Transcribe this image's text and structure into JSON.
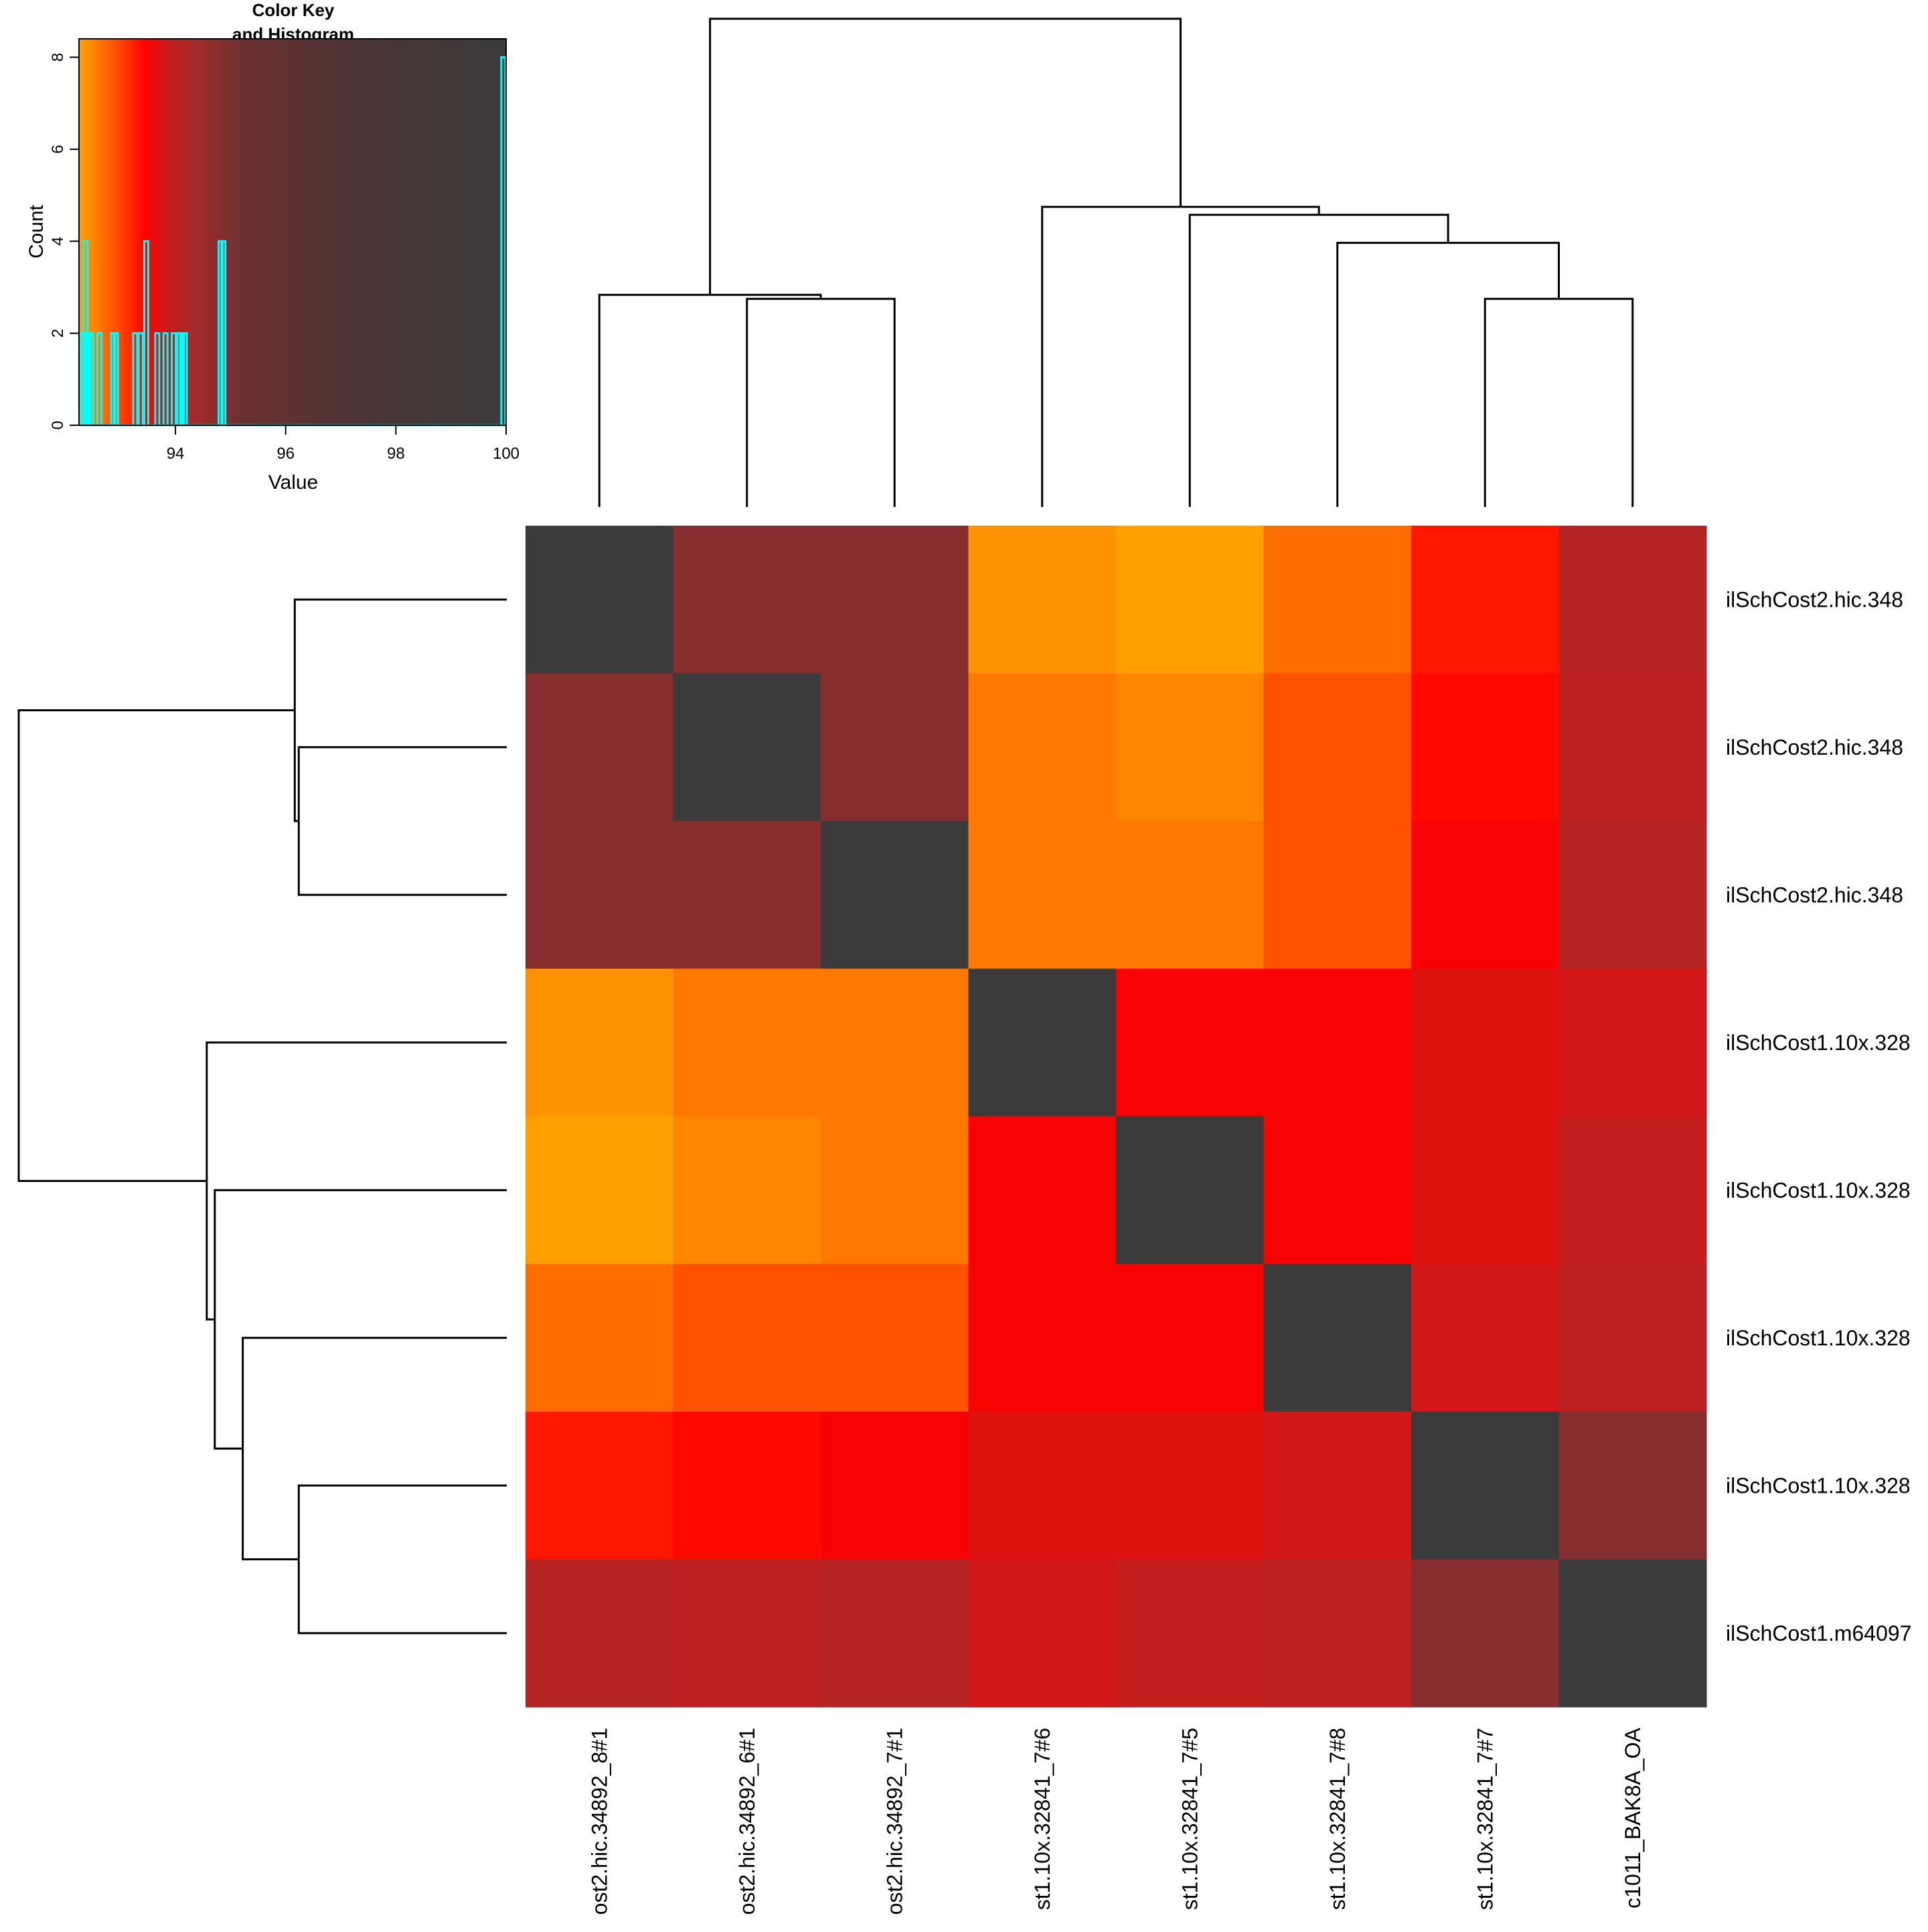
{
  "chart_data": {
    "type": "heatmap",
    "title": "",
    "xlabel": "",
    "ylabel": "",
    "rows": [
      "ilSchCost2.hic.348",
      "ilSchCost2.hic.348",
      "ilSchCost2.hic.348",
      "ilSchCost1.10x.328",
      "ilSchCost1.10x.328",
      "ilSchCost1.10x.328",
      "ilSchCost1.10x.328",
      "ilSchCost1.m64097"
    ],
    "columns": [
      "ost2.hic.34892_8#1",
      "ost2.hic.34892_6#1",
      "ost2.hic.34892_7#1",
      "st1.10x.32841_7#6",
      "st1.10x.32841_7#5",
      "st1.10x.32841_7#8",
      "st1.10x.32841_7#7",
      "c1011_BAK8A_OA"
    ],
    "values": [
      [
        100,
        94.8,
        94.8,
        92.4,
        92.3,
        92.7,
        93.3,
        94.1
      ],
      [
        94.8,
        100,
        94.8,
        92.6,
        92.5,
        92.9,
        93.4,
        94.0
      ],
      [
        94.8,
        94.8,
        100,
        92.6,
        92.6,
        92.9,
        93.5,
        94.1
      ],
      [
        92.4,
        92.6,
        92.6,
        100,
        93.5,
        93.5,
        93.7,
        93.8
      ],
      [
        92.3,
        92.5,
        92.6,
        93.5,
        100,
        93.5,
        93.7,
        93.9
      ],
      [
        92.7,
        92.9,
        92.9,
        93.5,
        93.5,
        100,
        93.8,
        94.0
      ],
      [
        93.3,
        93.4,
        93.5,
        93.7,
        93.7,
        93.8,
        100,
        94.8
      ],
      [
        94.1,
        94.0,
        94.1,
        93.8,
        93.9,
        94.0,
        94.8,
        100
      ]
    ],
    "color_scale": {
      "stops": [
        {
          "value": 92.25,
          "color": "#ffa500"
        },
        {
          "value": 92.55,
          "color": "#ff8000"
        },
        {
          "value": 93.0,
          "color": "#ff4500"
        },
        {
          "value": 93.45,
          "color": "#ff0000"
        },
        {
          "value": 93.9,
          "color": "#c41e1e"
        },
        {
          "value": 94.35,
          "color": "#a52a2a"
        },
        {
          "value": 95.2,
          "color": "#6b3030"
        },
        {
          "value": 97.5,
          "color": "#4b3535"
        },
        {
          "value": 100,
          "color": "#3b3b3b"
        }
      ]
    },
    "column_dendrogram": {
      "leaf_order": [
        0,
        1,
        2,
        3,
        4,
        5,
        6,
        7
      ],
      "merges": [
        {
          "left": "1",
          "right": "2",
          "height": 5.2
        },
        {
          "left": "6",
          "right": "7",
          "height": 5.2
        },
        {
          "left": "0",
          "right": "m1",
          "height": 5.3
        },
        {
          "left": "5",
          "right": "m2",
          "height": 6.6
        },
        {
          "left": "4",
          "right": "m4",
          "height": 7.3
        },
        {
          "left": "3",
          "right": "m5",
          "height": 7.5
        },
        {
          "left": "m3",
          "right": "m6",
          "height": 12.2
        }
      ],
      "max_height": 12.2
    },
    "row_dendrogram": {
      "leaf_order": [
        0,
        1,
        2,
        3,
        4,
        5,
        6,
        7
      ],
      "merges": [
        {
          "left": "1",
          "right": "2",
          "height": 5.2
        },
        {
          "left": "6",
          "right": "7",
          "height": 5.2
        },
        {
          "left": "0",
          "right": "m1",
          "height": 5.3
        },
        {
          "left": "5",
          "right": "m2",
          "height": 6.6
        },
        {
          "left": "4",
          "right": "m4",
          "height": 7.3
        },
        {
          "left": "3",
          "right": "m5",
          "height": 7.5
        },
        {
          "left": "m3",
          "right": "m6",
          "height": 12.2
        }
      ],
      "max_height": 12.2
    },
    "color_key": {
      "title_line1": "Color Key",
      "title_line2": "and Histogram",
      "xlabel": "Value",
      "ylabel": "Count",
      "xlim": [
        92.25,
        100
      ],
      "ylim": [
        0,
        8.4
      ],
      "xticks": [
        94,
        96,
        98,
        100
      ],
      "yticks": [
        0,
        2,
        4,
        6,
        8
      ],
      "histogram_color": "#00ffff",
      "histogram": [
        {
          "x": 92.32,
          "count": 2
        },
        {
          "x": 92.37,
          "count": 4
        },
        {
          "x": 92.42,
          "count": 2
        },
        {
          "x": 92.47,
          "count": 2
        },
        {
          "x": 92.62,
          "count": 2
        },
        {
          "x": 92.87,
          "count": 2
        },
        {
          "x": 92.92,
          "count": 2
        },
        {
          "x": 93.27,
          "count": 2
        },
        {
          "x": 93.37,
          "count": 2
        },
        {
          "x": 93.47,
          "count": 4
        },
        {
          "x": 93.67,
          "count": 2
        },
        {
          "x": 93.82,
          "count": 2
        },
        {
          "x": 93.97,
          "count": 2
        },
        {
          "x": 94.07,
          "count": 2
        },
        {
          "x": 94.12,
          "count": 2
        },
        {
          "x": 94.17,
          "count": 2
        },
        {
          "x": 94.82,
          "count": 4
        },
        {
          "x": 94.87,
          "count": 4
        },
        {
          "x": 99.95,
          "count": 8
        }
      ]
    }
  }
}
